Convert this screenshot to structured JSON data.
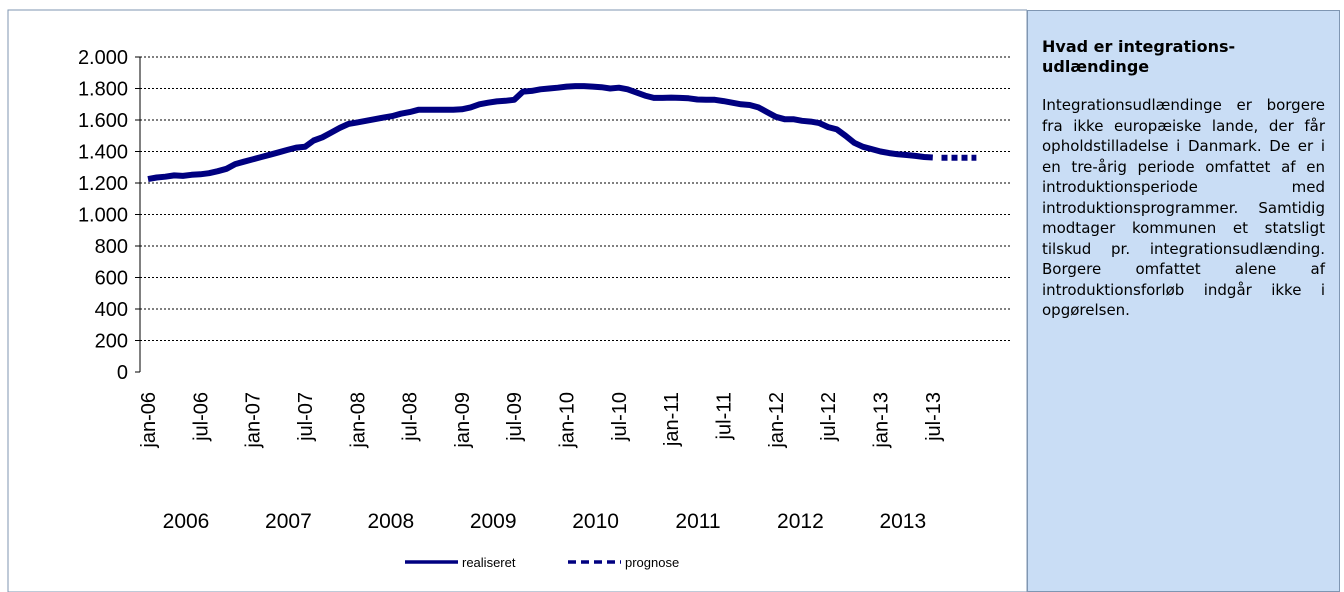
{
  "chart_data": {
    "type": "line",
    "categories": [
      "jan-06",
      null,
      null,
      null,
      null,
      null,
      "jul-06",
      null,
      null,
      null,
      null,
      null,
      "jan-07",
      null,
      null,
      null,
      null,
      null,
      "jul-07",
      null,
      null,
      null,
      null,
      null,
      "jan-08",
      null,
      null,
      null,
      null,
      null,
      "jul-08",
      null,
      null,
      null,
      null,
      null,
      "jan-09",
      null,
      null,
      null,
      null,
      null,
      "jul-09",
      null,
      null,
      null,
      null,
      null,
      "jan-10",
      null,
      null,
      null,
      null,
      null,
      "jul-10",
      null,
      null,
      null,
      null,
      null,
      "jan-11",
      null,
      null,
      null,
      null,
      null,
      "jul-11",
      null,
      null,
      null,
      null,
      null,
      "jan-12",
      null,
      null,
      null,
      null,
      null,
      "jul-12",
      null,
      null,
      null,
      null,
      null,
      "jan-13",
      null,
      null,
      null,
      null,
      null,
      "jul-13",
      null,
      null,
      null,
      null,
      null
    ],
    "years": [
      "2006",
      "2007",
      "2008",
      "2009",
      "2010",
      "2011",
      "2012",
      "2013"
    ],
    "series": [
      {
        "name": "realiseret",
        "color": "#000080",
        "dash": false,
        "values": [
          1225,
          1235,
          1240,
          1248,
          1245,
          1252,
          1255,
          1262,
          1275,
          1290,
          1320,
          1335,
          1350,
          1365,
          1380,
          1395,
          1410,
          1425,
          1430,
          1470,
          1490,
          1520,
          1550,
          1575,
          1585,
          1595,
          1605,
          1615,
          1625,
          1640,
          1650,
          1665,
          1665,
          1665,
          1665,
          1665,
          1668,
          1680,
          1700,
          1710,
          1718,
          1722,
          1728,
          1780,
          1785,
          1795,
          1800,
          1805,
          1812,
          1815,
          1815,
          1812,
          1808,
          1800,
          1805,
          1795,
          1775,
          1755,
          1740,
          1740,
          1742,
          1740,
          1738,
          1730,
          1728,
          1728,
          1720,
          1710,
          1700,
          1695,
          1680,
          1650,
          1620,
          1605,
          1605,
          1595,
          1590,
          1580,
          1555,
          1540,
          1500,
          1455,
          1430,
          1415,
          1400,
          1390,
          1382,
          1378,
          1372,
          1365,
          1362,
          null,
          null,
          null,
          null,
          null
        ]
      },
      {
        "name": "prognose",
        "color": "#000080",
        "dash": true,
        "values": [
          null,
          null,
          null,
          null,
          null,
          null,
          null,
          null,
          null,
          null,
          null,
          null,
          null,
          null,
          null,
          null,
          null,
          null,
          null,
          null,
          null,
          null,
          null,
          null,
          null,
          null,
          null,
          null,
          null,
          null,
          null,
          null,
          null,
          null,
          null,
          null,
          null,
          null,
          null,
          null,
          null,
          null,
          null,
          null,
          null,
          null,
          null,
          null,
          null,
          null,
          null,
          null,
          null,
          null,
          null,
          null,
          null,
          null,
          null,
          null,
          null,
          null,
          null,
          null,
          null,
          null,
          null,
          null,
          null,
          null,
          null,
          null,
          null,
          null,
          null,
          null,
          null,
          null,
          null,
          null,
          null,
          null,
          null,
          null,
          null,
          null,
          null,
          null,
          null,
          null,
          null,
          1360,
          1360,
          1360,
          1360,
          1360
        ]
      }
    ],
    "ylim": [
      0,
      2000
    ],
    "yticks": [
      0,
      200,
      400,
      600,
      800,
      {
        "value": 1000,
        "label": "1.000"
      },
      {
        "value": 1200,
        "label": "1.200"
      },
      {
        "value": 1400,
        "label": "1.400"
      },
      {
        "value": 1600,
        "label": "1.600"
      },
      {
        "value": 1800,
        "label": "1.800"
      },
      {
        "value": 2000,
        "label": "2.000"
      }
    ],
    "grid": true
  },
  "panel": {
    "heading": "Hvad er integrations-udlændinge",
    "body": "Integrationsudlændinge er borgere fra ikke europæiske lande, der får opholdstilladelse i Danmark. De er i en tre-årig periode omfattet af en introduktionsperiode med introduktionsprogrammer. Samtidig modtager kommunen et statsligt tilskud pr. integrationsudlænding. Borgere omfattet alene af introduktionsforløb indgår ikke i opgørelsen."
  }
}
